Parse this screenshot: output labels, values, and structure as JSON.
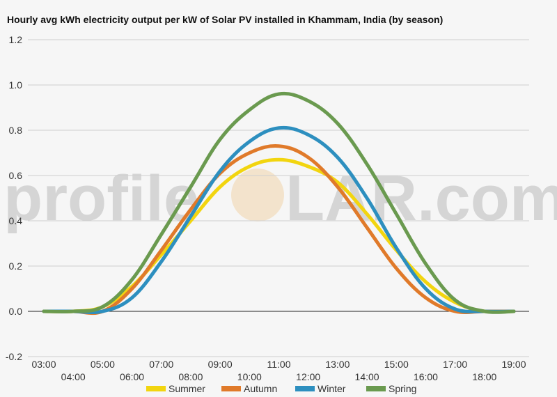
{
  "chart_data": {
    "type": "line",
    "title": "Hourly avg kWh electricity output per kW of Solar PV installed in Khammam, India (by season)",
    "xlabel": "",
    "ylabel": "",
    "ylim": [
      -0.2,
      1.2
    ],
    "y_ticks": [
      "-0.2",
      "0.0",
      "0.2",
      "0.4",
      "0.6",
      "0.8",
      "1.0",
      "1.2"
    ],
    "categories": [
      "03:00",
      "04:00",
      "05:00",
      "06:00",
      "07:00",
      "08:00",
      "09:00",
      "10:00",
      "11:00",
      "12:00",
      "13:00",
      "14:00",
      "15:00",
      "16:00",
      "17:00",
      "18:00",
      "19:00"
    ],
    "grid": true,
    "legend_position": "bottom",
    "series": [
      {
        "name": "Summer",
        "color": "#f2d50f",
        "values": [
          0.0,
          0.0,
          0.02,
          0.11,
          0.25,
          0.4,
          0.55,
          0.64,
          0.67,
          0.64,
          0.57,
          0.43,
          0.27,
          0.13,
          0.04,
          0.0,
          0.0
        ]
      },
      {
        "name": "Autumn",
        "color": "#e07a2a",
        "values": [
          0.0,
          0.0,
          0.0,
          0.1,
          0.27,
          0.45,
          0.61,
          0.7,
          0.73,
          0.68,
          0.55,
          0.37,
          0.19,
          0.06,
          0.0,
          0.0,
          0.0
        ]
      },
      {
        "name": "Winter",
        "color": "#2d8fbf",
        "values": [
          0.0,
          0.0,
          0.0,
          0.06,
          0.22,
          0.42,
          0.62,
          0.75,
          0.81,
          0.78,
          0.68,
          0.5,
          0.28,
          0.1,
          0.01,
          0.0,
          0.0
        ]
      },
      {
        "name": "Spring",
        "color": "#6a9a4f",
        "values": [
          0.0,
          0.0,
          0.02,
          0.14,
          0.34,
          0.55,
          0.76,
          0.89,
          0.96,
          0.93,
          0.83,
          0.65,
          0.43,
          0.21,
          0.05,
          0.0,
          0.0
        ]
      }
    ]
  },
  "watermark": {
    "left": "profile",
    "sun": "S",
    "right": "LAR.com"
  }
}
